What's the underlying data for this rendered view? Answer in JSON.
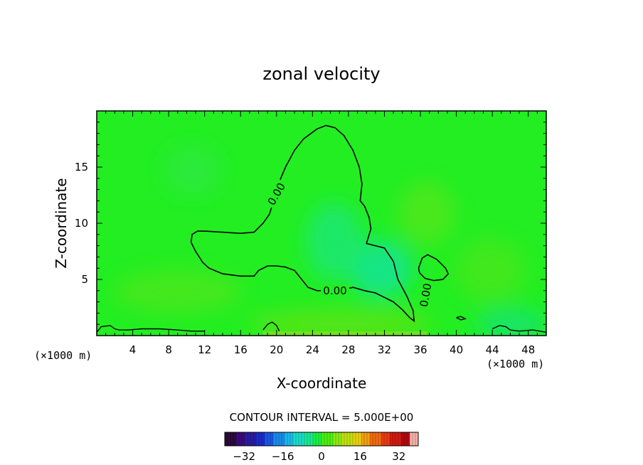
{
  "chart_data": {
    "type": "contour",
    "title": "zonal velocity",
    "xlabel": "X-coordinate",
    "ylabel": "Z-coordinate",
    "x_unit": "(×1000 m)",
    "y_unit": "(×1000 m)",
    "xlim": [
      0,
      50
    ],
    "ylim": [
      0,
      20
    ],
    "x_ticks": [
      4,
      8,
      12,
      16,
      20,
      24,
      28,
      32,
      36,
      40,
      44,
      48
    ],
    "y_ticks": [
      5,
      10,
      15
    ],
    "contour_interval_text": "CONTOUR INTERVAL = 5.000E+00",
    "contour_labels": [
      {
        "text": "0.00",
        "x": 20.0,
        "z": 12.6,
        "angle": -60
      },
      {
        "text": "0.00",
        "x": 26.5,
        "z": 4.0,
        "angle": 0
      },
      {
        "text": "0.00",
        "x": 36.6,
        "z": 3.6,
        "angle": -80
      }
    ],
    "zero_contour": [
      [
        10.5,
        8.3
      ],
      [
        11.0,
        7.5
      ],
      [
        11.8,
        6.5
      ],
      [
        12.5,
        6.0
      ],
      [
        14.0,
        5.5
      ],
      [
        16.0,
        5.3
      ],
      [
        17.5,
        5.3
      ],
      [
        18.0,
        5.8
      ],
      [
        19.0,
        6.2
      ],
      [
        20.0,
        6.2
      ],
      [
        21.0,
        6.1
      ],
      [
        22.0,
        5.8
      ],
      [
        22.5,
        5.3
      ],
      [
        23.5,
        4.3
      ],
      [
        24.5,
        4.0
      ],
      [
        25.5,
        4.0
      ],
      [
        27.0,
        4.0
      ],
      [
        28.5,
        4.3
      ],
      [
        29.8,
        4.0
      ],
      [
        31.0,
        3.8
      ],
      [
        32.0,
        3.4
      ],
      [
        33.0,
        3.0
      ],
      [
        34.0,
        2.3
      ],
      [
        34.8,
        1.6
      ],
      [
        35.3,
        1.3
      ],
      [
        35.2,
        2.2
      ],
      [
        34.5,
        3.5
      ],
      [
        33.5,
        5.0
      ],
      [
        33.0,
        6.6
      ],
      [
        32.0,
        7.8
      ],
      [
        31.0,
        8.0
      ],
      [
        30.0,
        8.2
      ],
      [
        30.5,
        9.5
      ],
      [
        30.3,
        10.5
      ],
      [
        29.8,
        11.5
      ],
      [
        29.3,
        12.0
      ],
      [
        29.5,
        13.5
      ],
      [
        29.2,
        15.0
      ],
      [
        28.5,
        16.5
      ],
      [
        27.5,
        17.8
      ],
      [
        26.5,
        18.5
      ],
      [
        25.5,
        18.7
      ],
      [
        24.5,
        18.4
      ],
      [
        23.0,
        17.5
      ],
      [
        22.0,
        16.5
      ],
      [
        21.0,
        15.0
      ],
      [
        20.2,
        13.5
      ],
      [
        19.7,
        12.0
      ],
      [
        19.2,
        10.8
      ],
      [
        18.5,
        10.0
      ],
      [
        17.5,
        9.2
      ],
      [
        16.0,
        9.1
      ],
      [
        14.0,
        9.2
      ],
      [
        12.0,
        9.3
      ],
      [
        11.2,
        9.3
      ],
      [
        10.6,
        9.0
      ],
      [
        10.5,
        8.3
      ]
    ],
    "closed_cell_contour": [
      [
        35.8,
        6.0
      ],
      [
        36.2,
        6.9
      ],
      [
        36.8,
        7.2
      ],
      [
        37.8,
        6.8
      ],
      [
        38.8,
        6.0
      ],
      [
        39.1,
        5.5
      ],
      [
        38.5,
        5.0
      ],
      [
        37.5,
        4.9
      ],
      [
        36.5,
        5.1
      ],
      [
        35.9,
        5.6
      ],
      [
        35.8,
        6.0
      ]
    ],
    "boundary_contours": [
      [
        [
          0.0,
          0.3
        ],
        [
          0.5,
          0.8
        ],
        [
          1.5,
          0.9
        ],
        [
          2.0,
          0.6
        ],
        [
          2.5,
          0.5
        ],
        [
          3.5,
          0.5
        ],
        [
          5.0,
          0.6
        ],
        [
          7.0,
          0.6
        ],
        [
          9.0,
          0.5
        ],
        [
          10.5,
          0.4
        ],
        [
          12.0,
          0.4
        ]
      ],
      [
        [
          18.5,
          0.5
        ],
        [
          19.0,
          1.0
        ],
        [
          19.5,
          1.2
        ],
        [
          20.0,
          0.9
        ],
        [
          20.3,
          0.4
        ]
      ],
      [
        [
          40.0,
          1.6
        ],
        [
          40.5,
          1.7
        ],
        [
          41.0,
          1.5
        ],
        [
          40.5,
          1.4
        ],
        [
          40.0,
          1.6
        ]
      ],
      [
        [
          44.0,
          0.6
        ],
        [
          44.8,
          0.9
        ],
        [
          45.5,
          0.8
        ],
        [
          46.0,
          0.5
        ],
        [
          47.0,
          0.4
        ],
        [
          48.5,
          0.5
        ],
        [
          50.0,
          0.3
        ]
      ]
    ],
    "colorbar": {
      "ticks": [
        "−32",
        "−16",
        "0",
        "16",
        "32"
      ],
      "range": [
        -40,
        40
      ],
      "colors": [
        "#2a0a3a",
        "#3a0a7a",
        "#2a1aa0",
        "#1a2ac8",
        "#1a55e0",
        "#1a8ae8",
        "#1ab8e8",
        "#1adcc8",
        "#1ae890",
        "#1af040",
        "#4af010",
        "#8aea10",
        "#c0e010",
        "#e8d010",
        "#f0a010",
        "#f06a10",
        "#e83a10",
        "#d01a10",
        "#b00a10",
        "#f2b0a8"
      ]
    },
    "colors": {
      "field_base": "#22ee22",
      "field_cool": "#10e58a",
      "field_warm": "#5fe81a",
      "contour": "#000000"
    }
  }
}
